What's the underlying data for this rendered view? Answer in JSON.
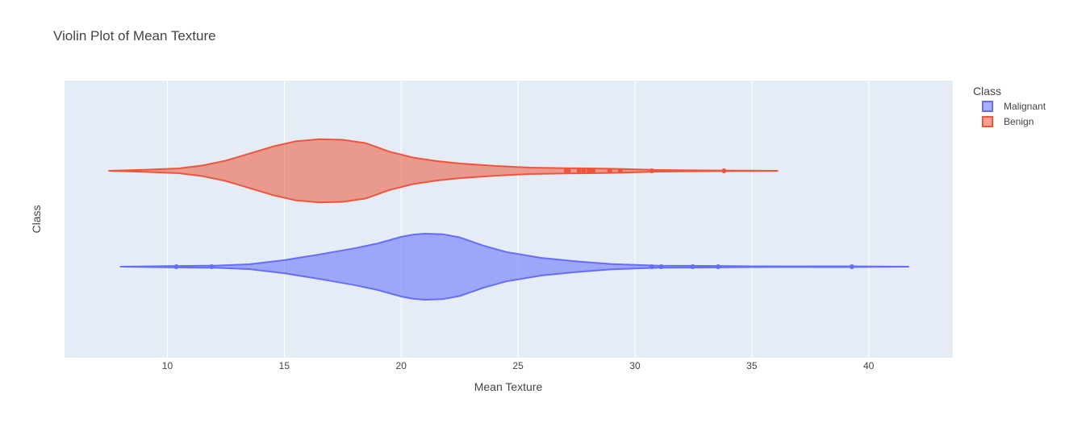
{
  "chart_data": {
    "type": "violin",
    "title": "Violin Plot of Mean Texture",
    "xlabel": "Mean Texture",
    "ylabel": "Class",
    "xlim": [
      5.6,
      43.6
    ],
    "xticks": [
      10,
      15,
      20,
      25,
      30,
      35,
      40
    ],
    "orientation": "horizontal",
    "grid": true,
    "legend": {
      "title": "Class",
      "placement": "top-right outside"
    },
    "series": [
      {
        "name": "Malignant",
        "color": "#636efa",
        "fill": "rgba(99,110,250,0.55)",
        "range": [
          8.0,
          41.7
        ],
        "density_profile": [
          [
            8.0,
            0.0
          ],
          [
            10.0,
            0.3
          ],
          [
            12.0,
            0.5
          ],
          [
            13.5,
            1.2
          ],
          [
            15.0,
            3.2
          ],
          [
            16.5,
            6.0
          ],
          [
            18.0,
            9.0
          ],
          [
            19.0,
            11.4
          ],
          [
            20.0,
            14.6
          ],
          [
            20.5,
            15.7
          ],
          [
            21.0,
            16.2
          ],
          [
            21.8,
            15.9
          ],
          [
            22.5,
            14.4
          ],
          [
            23.5,
            10.4
          ],
          [
            24.5,
            7.2
          ],
          [
            26.0,
            4.3
          ],
          [
            27.5,
            2.6
          ],
          [
            29.0,
            1.3
          ],
          [
            31.0,
            0.5
          ],
          [
            33.0,
            0.4
          ],
          [
            35.0,
            0.2
          ],
          [
            37.0,
            0.15
          ],
          [
            39.0,
            0.2
          ],
          [
            41.7,
            0.0
          ]
        ],
        "outliers": [
          10.38,
          11.89,
          30.72,
          31.12,
          32.47,
          33.56,
          39.28
        ]
      },
      {
        "name": "Benign",
        "color": "#ef553b",
        "fill": "rgba(239,85,59,0.55)",
        "range": [
          7.5,
          36.1
        ],
        "density_profile": [
          [
            7.5,
            0.0
          ],
          [
            9.0,
            0.5
          ],
          [
            10.5,
            1.2
          ],
          [
            11.5,
            2.6
          ],
          [
            12.5,
            5.0
          ],
          [
            13.5,
            8.4
          ],
          [
            14.5,
            11.9
          ],
          [
            15.5,
            14.5
          ],
          [
            16.5,
            15.5
          ],
          [
            17.5,
            15.2
          ],
          [
            18.5,
            13.5
          ],
          [
            19.5,
            9.4
          ],
          [
            20.5,
            6.5
          ],
          [
            21.5,
            4.8
          ],
          [
            22.5,
            3.6
          ],
          [
            24.0,
            2.4
          ],
          [
            25.5,
            1.6
          ],
          [
            27.0,
            1.3
          ],
          [
            28.0,
            1.2
          ],
          [
            29.5,
            0.9
          ],
          [
            31.0,
            0.4
          ],
          [
            33.0,
            0.2
          ],
          [
            34.5,
            0.1
          ],
          [
            36.1,
            0.0
          ]
        ],
        "outliers": [
          27.06,
          27.15,
          27.61,
          27.81,
          28.03,
          28.14,
          28.21,
          28.92,
          29.37,
          30.72,
          33.81
        ]
      }
    ]
  }
}
